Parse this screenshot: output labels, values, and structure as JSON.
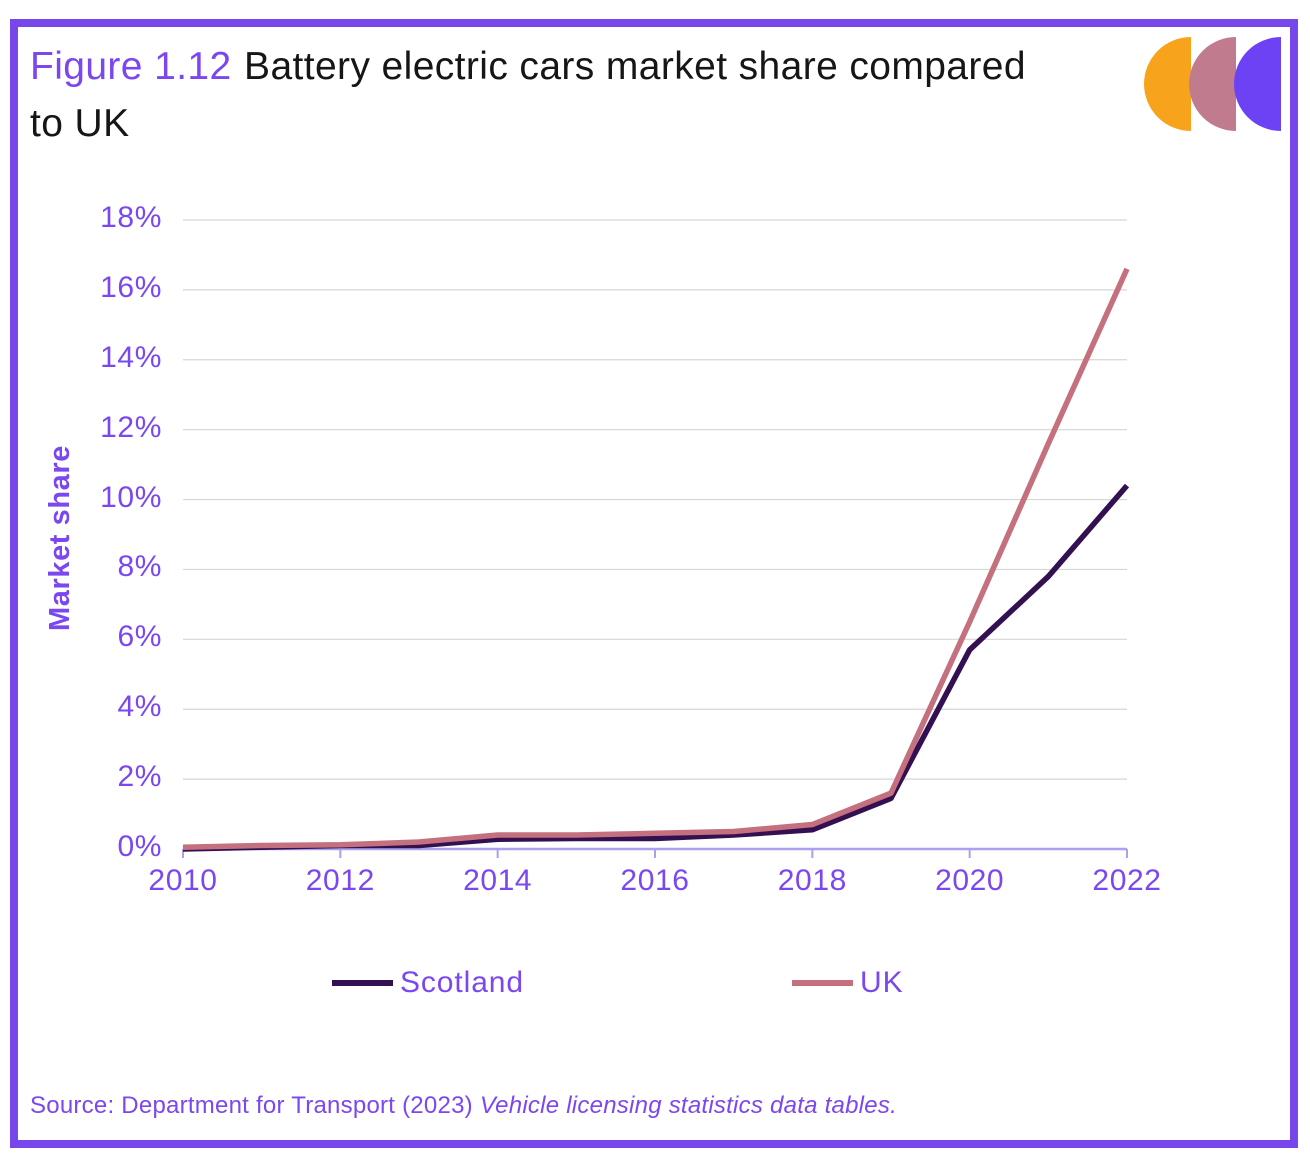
{
  "page": {
    "title_prefix": "Figure 1.12",
    "title_rest": "Battery electric cars market share compared to UK",
    "source_prefix": "Source: Department for Transport (2023)",
    "source_italic": "Vehicle licensing statistics data tables."
  },
  "colors": {
    "accent_purple": "#7A47F0",
    "border_purple": "#7747EC",
    "axis_line_purple": "#ABA0F0",
    "gridline_gray": "#D6D6D6",
    "title_text": "#161616",
    "logo_orange": "#F7A41C",
    "logo_mauve": "#C07C8E",
    "logo_purple": "#6D42F5"
  },
  "logo": {
    "shapes": [
      "orange-crescent",
      "mauve-crescent",
      "purple-crescent"
    ]
  },
  "chart_data": {
    "type": "line",
    "title": "Battery electric cars market share compared to UK",
    "x": [
      2010,
      2011,
      2012,
      2013,
      2014,
      2015,
      2016,
      2017,
      2018,
      2019,
      2020,
      2021,
      2022
    ],
    "series": [
      {
        "name": "Scotland",
        "color": "#321051",
        "values": [
          0.0,
          0.05,
          0.1,
          0.1,
          0.28,
          0.3,
          0.3,
          0.4,
          0.55,
          1.45,
          5.7,
          7.8,
          10.4
        ]
      },
      {
        "name": "UK",
        "color": "#C4707E",
        "values": [
          0.05,
          0.1,
          0.12,
          0.2,
          0.4,
          0.4,
          0.45,
          0.5,
          0.7,
          1.6,
          6.5,
          11.6,
          16.6
        ]
      }
    ],
    "xlabel": "",
    "ylabel": "Market share",
    "ylim": [
      0,
      18
    ],
    "xlim": [
      2010,
      2022
    ],
    "yticks": [
      "0%",
      "2%",
      "4%",
      "6%",
      "8%",
      "10%",
      "12%",
      "14%",
      "16%",
      "18%"
    ],
    "xticks": [
      "2010",
      "2012",
      "2014",
      "2016",
      "2018",
      "2020",
      "2022"
    ],
    "grid": true,
    "gridline_color": "#D6D6D6",
    "axis_color": "#ABA0F0",
    "legend_position": "bottom"
  }
}
